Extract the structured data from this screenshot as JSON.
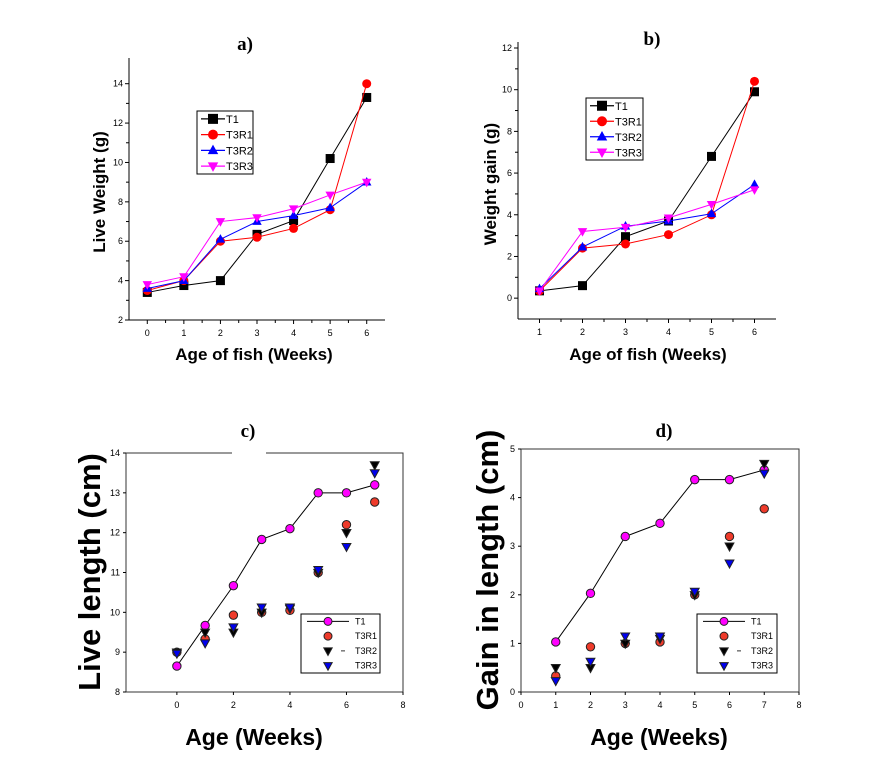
{
  "chart_data": [
    {
      "id": "a",
      "type": "line",
      "title": "a)",
      "xlabel": "Age of fish (Weeks)",
      "ylabel": "Live Weight (g)",
      "x": [
        0,
        1,
        2,
        3,
        4,
        5,
        6
      ],
      "xlim": [
        -0.5,
        6.5
      ],
      "ylim": [
        2,
        15
      ],
      "xticks": [
        0,
        1,
        2,
        3,
        4,
        5,
        6
      ],
      "yticks": [
        2,
        4,
        6,
        8,
        10,
        12,
        14
      ],
      "legend": "upper-left-center",
      "series": [
        {
          "name": "T1",
          "color": "#000000",
          "marker": "square",
          "values": [
            3.4,
            3.75,
            4.0,
            6.35,
            7.05,
            10.2,
            13.3
          ]
        },
        {
          "name": "T3R1",
          "color": "#ff0000",
          "marker": "circle",
          "values": [
            3.5,
            4.0,
            6.0,
            6.2,
            6.65,
            7.6,
            14.0
          ]
        },
        {
          "name": "T3R2",
          "color": "#0000ff",
          "marker": "triangle-up",
          "values": [
            3.6,
            4.0,
            6.1,
            7.0,
            7.3,
            7.7,
            9.0
          ]
        },
        {
          "name": "T3R3",
          "color": "#ff00ff",
          "marker": "triangle-down",
          "values": [
            3.8,
            4.2,
            7.0,
            7.2,
            7.65,
            8.35,
            9.0
          ]
        }
      ]
    },
    {
      "id": "b",
      "type": "line",
      "title": "b)",
      "xlabel": "Age of fish (Weeks)",
      "ylabel": "Weight gain (g)",
      "x": [
        1,
        2,
        3,
        4,
        5,
        6
      ],
      "xlim": [
        0.5,
        6.5
      ],
      "ylim": [
        -1,
        12
      ],
      "xticks": [
        1,
        2,
        3,
        4,
        5,
        6
      ],
      "yticks": [
        0,
        2,
        4,
        6,
        8,
        10,
        12
      ],
      "legend": "upper-left-center",
      "series": [
        {
          "name": "T1",
          "color": "#000000",
          "marker": "square",
          "values": [
            0.35,
            0.6,
            2.95,
            3.7,
            6.8,
            9.9
          ]
        },
        {
          "name": "T3R1",
          "color": "#ff0000",
          "marker": "circle",
          "values": [
            0.35,
            2.4,
            2.6,
            3.05,
            4.0,
            10.4
          ]
        },
        {
          "name": "T3R2",
          "color": "#0000ff",
          "marker": "triangle-up",
          "values": [
            0.45,
            2.45,
            3.45,
            3.7,
            4.05,
            5.45
          ]
        },
        {
          "name": "T3R3",
          "color": "#ff00ff",
          "marker": "triangle-down",
          "values": [
            0.35,
            3.2,
            3.4,
            3.85,
            4.5,
            5.2
          ]
        }
      ]
    },
    {
      "id": "c",
      "type": "scatter",
      "title": "c)",
      "xlabel": "Age (Weeks)",
      "ylabel": "Live length (cm)",
      "x": [
        0,
        1,
        2,
        3,
        4,
        5,
        6,
        7
      ],
      "xlim": [
        -1.8,
        8
      ],
      "ylim": [
        8,
        14
      ],
      "xticks": [
        0,
        2,
        4,
        6,
        8
      ],
      "yticks": [
        8,
        9,
        10,
        11,
        12,
        13,
        14
      ],
      "legend": "lower-right",
      "series": [
        {
          "name": "T1",
          "color": "#ff00ff",
          "marker": "circle",
          "line": true,
          "values": [
            8.65,
            9.67,
            10.67,
            11.83,
            12.1,
            13.0,
            13.0,
            13.2
          ]
        },
        {
          "name": "T3R1",
          "color": "#ee3b2b",
          "marker": "circle",
          "line": false,
          "values": [
            9.0,
            9.33,
            9.93,
            10.0,
            10.05,
            11.0,
            12.2,
            12.77
          ]
        },
        {
          "name": "T3R2",
          "color": "#000000",
          "marker": "triangle-down",
          "line": false,
          "values": [
            9.0,
            9.5,
            9.5,
            10.0,
            10.1,
            11.0,
            12.0,
            13.7
          ]
        },
        {
          "name": "T3R3",
          "color": "#0000ee",
          "marker": "triangle-down",
          "line": false,
          "values": [
            8.97,
            9.23,
            9.63,
            10.13,
            10.13,
            11.07,
            11.65,
            13.5
          ]
        }
      ]
    },
    {
      "id": "d",
      "type": "scatter",
      "title": "d)",
      "xlabel": "Age (Weeks)",
      "ylabel": "Gain in length (cm)",
      "x": [
        1,
        2,
        3,
        4,
        5,
        6,
        7
      ],
      "xlim": [
        0,
        8
      ],
      "ylim": [
        0,
        5
      ],
      "xticks": [
        0,
        1,
        2,
        3,
        4,
        5,
        6,
        7,
        8
      ],
      "yticks": [
        0,
        1,
        2,
        3,
        4,
        5
      ],
      "legend": "lower-right",
      "series": [
        {
          "name": "T1",
          "color": "#ff00ff",
          "marker": "circle",
          "line": true,
          "values": [
            1.03,
            2.03,
            3.2,
            3.47,
            4.37,
            4.37,
            4.57
          ]
        },
        {
          "name": "T3R1",
          "color": "#ee3b2b",
          "marker": "circle",
          "line": false,
          "values": [
            0.33,
            0.93,
            1.0,
            1.03,
            2.0,
            3.2,
            3.77
          ]
        },
        {
          "name": "T3R2",
          "color": "#000000",
          "marker": "triangle-down",
          "line": false,
          "values": [
            0.5,
            0.5,
            1.0,
            1.1,
            2.0,
            3.0,
            4.7
          ]
        },
        {
          "name": "T3R3",
          "color": "#0000ee",
          "marker": "triangle-down",
          "line": false,
          "values": [
            0.23,
            0.63,
            1.15,
            1.15,
            2.07,
            2.65,
            4.5
          ]
        }
      ]
    }
  ]
}
